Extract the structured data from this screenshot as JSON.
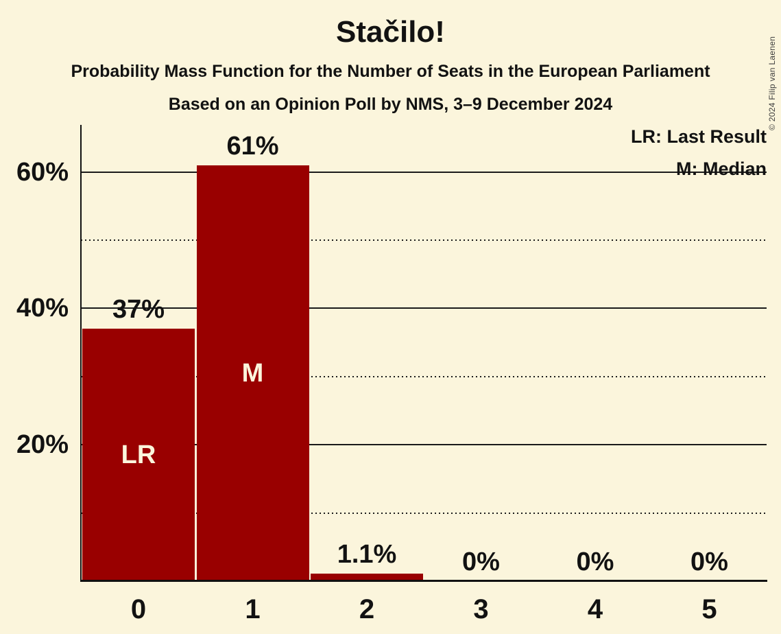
{
  "copyright": "© 2024 Filip van Laenen",
  "colors": {
    "background": "#FBF5DC",
    "bar": "#990000",
    "text": "#121212",
    "grid": "#1a1a1a"
  },
  "chart_data": {
    "type": "bar",
    "title": "Stačilo!",
    "subtitle": "Probability Mass Function for the Number of Seats in the European Parliament",
    "source_line": "Based on an Opinion Poll by NMS, 3–9 December 2024",
    "categories": [
      "0",
      "1",
      "2",
      "3",
      "4",
      "5"
    ],
    "values": [
      37,
      61,
      1.1,
      0,
      0,
      0
    ],
    "value_labels": [
      "37%",
      "61%",
      "1.1%",
      "0%",
      "0%",
      "0%"
    ],
    "bar_inner_labels": [
      "LR",
      "M",
      "",
      "",
      "",
      ""
    ],
    "y_axis": {
      "tick_labels": [
        "20%",
        "40%",
        "60%"
      ],
      "solid_gridlines_pct": [
        20,
        40,
        60
      ],
      "dotted_gridlines_pct": [
        10,
        30,
        50
      ],
      "ylim": [
        0,
        67
      ]
    },
    "legend": [
      {
        "key": "LR",
        "label": "LR: Last Result"
      },
      {
        "key": "M",
        "label": "M: Median"
      }
    ],
    "grid": "horizontal-only",
    "legend_position": "top-right"
  }
}
